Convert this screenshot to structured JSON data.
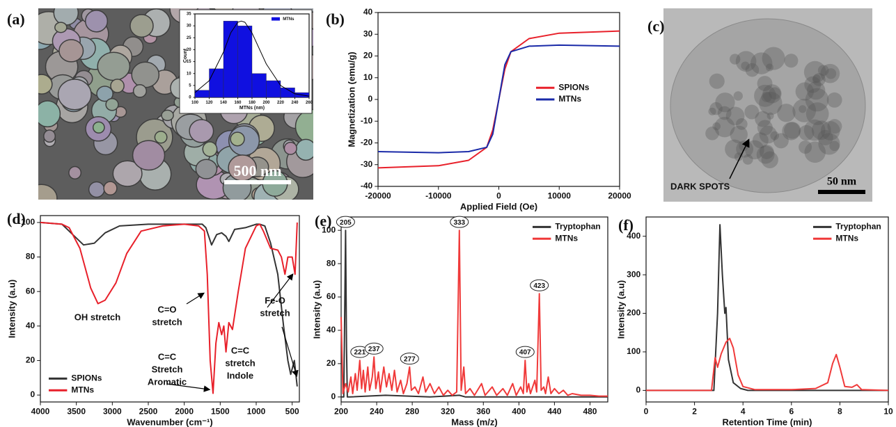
{
  "chart_data": [
    {
      "type": "micrograph",
      "panel": "(a)",
      "scale_bar": "500 nm",
      "inset": {
        "type": "histogram",
        "bins": [
          100,
          120,
          140,
          160,
          180,
          200,
          220,
          240,
          260
        ],
        "counts": [
          3,
          12,
          32,
          30,
          10,
          7,
          4,
          2
        ],
        "color": "#1010e0",
        "name": "MTNs",
        "legend": "upper right",
        "xlabel": "MTNs (nm)",
        "ylabel": "Count",
        "xlim": [
          100,
          260
        ],
        "xticks": [
          100,
          120,
          140,
          160,
          180,
          200,
          220,
          240,
          260
        ],
        "ylim": [
          0,
          35
        ],
        "yticks": [
          0,
          5,
          10,
          15,
          20,
          25,
          30,
          35
        ],
        "fit": {
          "color": "#000000",
          "x": [
            100,
            120,
            140,
            150,
            160,
            165,
            170,
            180,
            200,
            220,
            240,
            260
          ],
          "values": [
            2,
            7,
            19,
            27,
            31.5,
            32,
            31.5,
            27,
            14,
            5,
            1.5,
            0.5
          ]
        }
      }
    },
    {
      "type": "line",
      "panel": "(b)",
      "xlabel": "Applied Field (Oe)",
      "ylabel": "Magnetization (emu/g)",
      "legend": "center right",
      "x": [
        -20000,
        -10000,
        -5000,
        -2000,
        -1000,
        -500,
        0,
        500,
        1000,
        2000,
        5000,
        10000,
        20000
      ],
      "series": [
        {
          "name": "SPIONs",
          "color": "#e8202a",
          "values": [
            -31.5,
            -30.5,
            -28,
            -22,
            -14,
            -7,
            0,
            7,
            14,
            22,
            28,
            30.5,
            31.5
          ]
        },
        {
          "name": "MTNs",
          "color": "#1a2aa8",
          "values": [
            -24,
            -24.5,
            -24,
            -22,
            -16,
            -8,
            0,
            8,
            16,
            22,
            24.5,
            25,
            24.5
          ]
        }
      ],
      "xlim": [
        -20000,
        20000
      ],
      "xticks": [
        -20000,
        -10000,
        0,
        10000,
        20000
      ],
      "ylim": [
        -40,
        40
      ],
      "yticks": [
        -40,
        -30,
        -20,
        -10,
        0,
        10,
        20,
        30,
        40
      ]
    },
    {
      "type": "micrograph",
      "panel": "(c)",
      "scale_bar": "50 nm",
      "annotation": "DARK SPOTS"
    },
    {
      "type": "line",
      "panel": "(d)",
      "xlabel": "Wavenumber (cm⁻¹)",
      "ylabel": "Intensity (a.u)",
      "legend": "lower left",
      "series": [
        {
          "name": "SPIONs",
          "color": "#333333",
          "x": [
            4000,
            3700,
            3550,
            3400,
            3250,
            3100,
            2900,
            2500,
            2000,
            1750,
            1700,
            1620,
            1550,
            1480,
            1420,
            1380,
            1300,
            1150,
            1000,
            950,
            880,
            800,
            700,
            620,
            560,
            520,
            470,
            430
          ],
          "values": [
            100,
            99,
            93,
            87,
            88,
            94,
            98,
            99,
            99,
            99,
            97,
            87,
            93,
            94,
            92,
            89,
            96,
            97,
            99,
            99,
            98,
            88,
            70,
            40,
            20,
            12,
            20,
            5
          ]
        },
        {
          "name": "MTNs",
          "color": "#e8202a",
          "x": [
            4000,
            3700,
            3600,
            3450,
            3300,
            3200,
            3100,
            2950,
            2800,
            2600,
            2300,
            2000,
            1800,
            1720,
            1680,
            1640,
            1600,
            1560,
            1520,
            1480,
            1450,
            1420,
            1380,
            1330,
            1250,
            1150,
            1000,
            950,
            900,
            850,
            800,
            700,
            650,
            600,
            560,
            500,
            460,
            430
          ],
          "values": [
            100,
            99,
            97,
            85,
            62,
            53,
            55,
            65,
            82,
            95,
            98,
            99,
            98,
            95,
            70,
            20,
            1,
            30,
            42,
            35,
            40,
            25,
            42,
            38,
            60,
            85,
            98,
            99,
            95,
            90,
            85,
            84,
            80,
            70,
            80,
            80,
            70,
            100
          ]
        }
      ],
      "annotations": [
        [
          "OH stretch"
        ],
        [
          "C=O",
          "stretch"
        ],
        [
          "C=C",
          "Stretch",
          "Aromatic"
        ],
        [
          "C=C",
          "stretch",
          "Indole"
        ],
        [
          "Fe-O",
          "stretch"
        ]
      ],
      "xlim": [
        4000,
        400
      ],
      "xticks": [
        4000,
        3500,
        3000,
        2500,
        2000,
        1500,
        1000,
        500
      ],
      "ylim": [
        -4,
        104
      ],
      "yticks": [
        0,
        20,
        40,
        60,
        80,
        100
      ]
    },
    {
      "type": "line",
      "panel": "(e)",
      "xlabel": "Mass (m/z)",
      "ylabel": "Intensity (a.u)",
      "legend": "upper right",
      "series": [
        {
          "name": "Tryptophan",
          "color": "#333333",
          "x": [
            200,
            203,
            204,
            205,
            206,
            207,
            210,
            250,
            300,
            333,
            340,
            400,
            500
          ],
          "values": [
            0,
            0,
            50,
            100,
            30,
            0,
            0,
            1,
            0,
            1,
            0,
            0,
            0
          ]
        },
        {
          "name": "MTNs",
          "color": "#f03a3a",
          "x": [
            200,
            202,
            205,
            208,
            211,
            213,
            216,
            218,
            221,
            223,
            225,
            227,
            230,
            232,
            235,
            237,
            239,
            242,
            244,
            248,
            251,
            254,
            257,
            260,
            263,
            267,
            270,
            274,
            277,
            279,
            283,
            287,
            292,
            295,
            300,
            305,
            310,
            315,
            320,
            325,
            330,
            333,
            335,
            338,
            340,
            345,
            350,
            358,
            362,
            370,
            375,
            382,
            387,
            393,
            397,
            402,
            405,
            407,
            409,
            411,
            413,
            418,
            420,
            423,
            425,
            428,
            430,
            433,
            436,
            440,
            445,
            450,
            455,
            460,
            470,
            480,
            490,
            500
          ],
          "values": [
            48,
            2,
            8,
            3,
            12,
            2,
            14,
            4,
            22,
            5,
            16,
            3,
            18,
            4,
            12,
            24,
            5,
            15,
            3,
            18,
            6,
            14,
            4,
            16,
            3,
            10,
            2,
            8,
            18,
            4,
            6,
            2,
            12,
            3,
            8,
            2,
            6,
            1,
            4,
            1,
            3,
            100,
            4,
            18,
            2,
            5,
            1,
            8,
            1,
            6,
            1,
            5,
            1,
            8,
            1,
            6,
            2,
            22,
            3,
            8,
            2,
            10,
            3,
            62,
            4,
            6,
            2,
            12,
            2,
            5,
            2,
            4,
            1,
            2,
            1,
            1,
            0.5,
            0.5
          ]
        }
      ],
      "peaks": [
        {
          "x": 205,
          "y": 100
        },
        {
          "x": 221,
          "y": 22
        },
        {
          "x": 237,
          "y": 24
        },
        {
          "x": 277,
          "y": 18
        },
        {
          "x": 333,
          "y": 100
        },
        {
          "x": 407,
          "y": 22
        },
        {
          "x": 423,
          "y": 62
        }
      ],
      "xlim": [
        200,
        500
      ],
      "xticks": [
        200,
        240,
        280,
        320,
        360,
        400,
        440,
        480
      ],
      "ylim": [
        -3,
        108
      ],
      "yticks": [
        0,
        20,
        40,
        60,
        80,
        100
      ]
    },
    {
      "type": "line",
      "panel": "(f)",
      "xlabel": "Retention Time (min)",
      "ylabel": "Intensity (a.u)",
      "legend": "upper right",
      "series": [
        {
          "name": "Tryptophan",
          "color": "#333333",
          "x": [
            0,
            2.8,
            2.95,
            3.05,
            3.15,
            3.25,
            3.3,
            3.4,
            3.6,
            3.9,
            4.2,
            5,
            10
          ],
          "values": [
            0,
            0,
            200,
            430,
            300,
            200,
            215,
            80,
            20,
            5,
            0,
            0,
            0
          ]
        },
        {
          "name": "MTNs",
          "color": "#f03a3a",
          "x": [
            0,
            2.7,
            2.85,
            2.95,
            3.1,
            3.3,
            3.45,
            3.6,
            3.8,
            4,
            4.5,
            6,
            7,
            7.5,
            7.7,
            7.85,
            8,
            8.2,
            8.5,
            8.7,
            8.9,
            10
          ],
          "values": [
            0,
            0,
            85,
            60,
            95,
            125,
            135,
            110,
            40,
            10,
            2,
            2,
            5,
            20,
            70,
            93,
            60,
            10,
            8,
            15,
            2,
            0
          ]
        }
      ],
      "xlim": [
        0,
        10
      ],
      "xticks": [
        0,
        2,
        4,
        6,
        8,
        10
      ],
      "ylim": [
        -30,
        450
      ],
      "yticks": [
        0,
        100,
        200,
        300,
        400
      ]
    }
  ]
}
